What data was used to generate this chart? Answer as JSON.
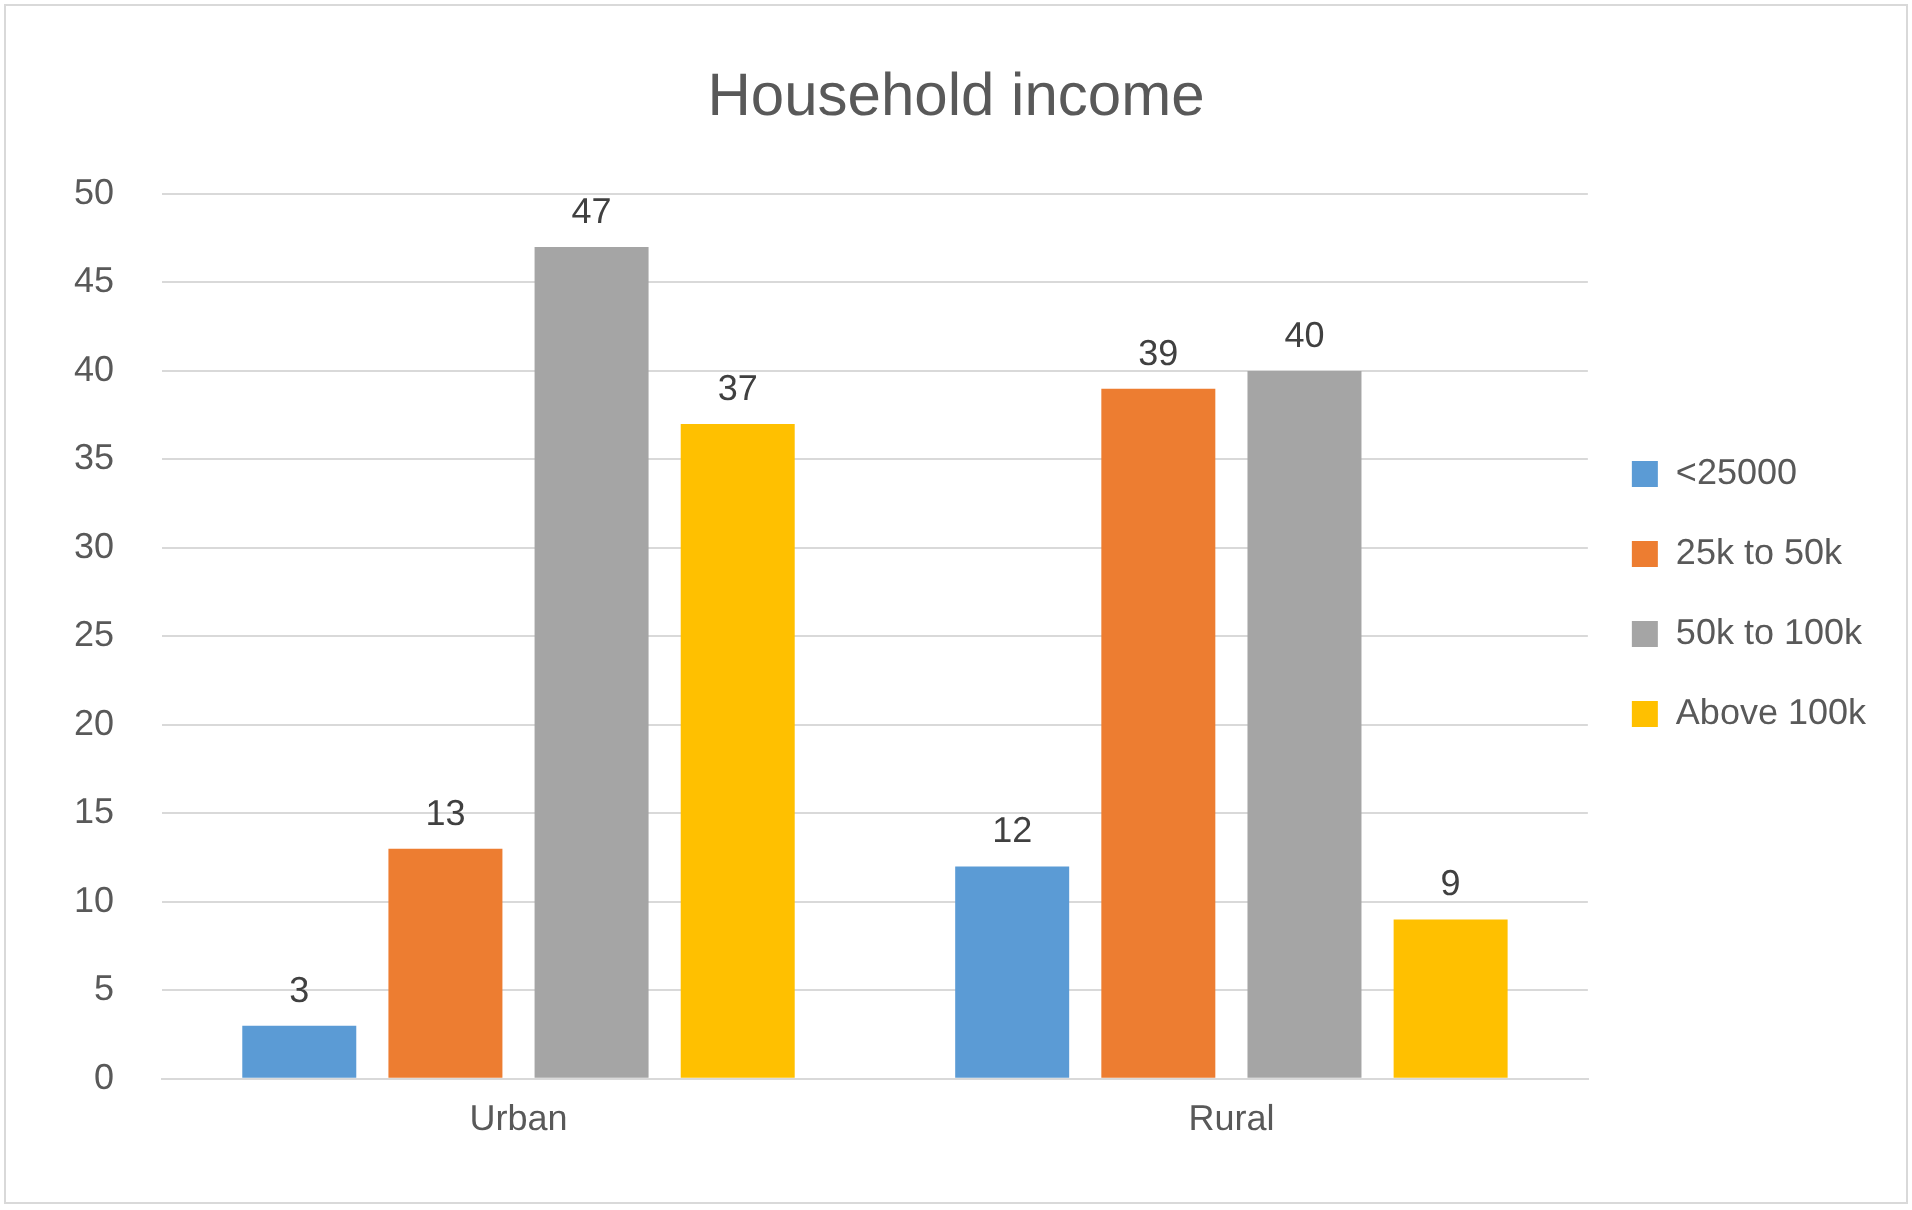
{
  "chart_data": {
    "type": "bar",
    "title": "Household income",
    "categories": [
      "Urban",
      "Rural"
    ],
    "series": [
      {
        "name": "<25000",
        "color": "#5b9bd5",
        "values": [
          3,
          12
        ]
      },
      {
        "name": "25k to 50k",
        "color": "#ed7d31",
        "values": [
          13,
          39
        ]
      },
      {
        "name": "50k to 100k",
        "color": "#a5a5a5",
        "values": [
          47,
          40
        ]
      },
      {
        "name": "Above 100k",
        "color": "#ffc000",
        "values": [
          37,
          9
        ]
      }
    ],
    "ylim": [
      0,
      50
    ],
    "yticks": [
      0,
      5,
      10,
      15,
      20,
      25,
      30,
      35,
      40,
      45,
      50
    ],
    "grid": "y",
    "legend": "right",
    "data_labels": true
  }
}
